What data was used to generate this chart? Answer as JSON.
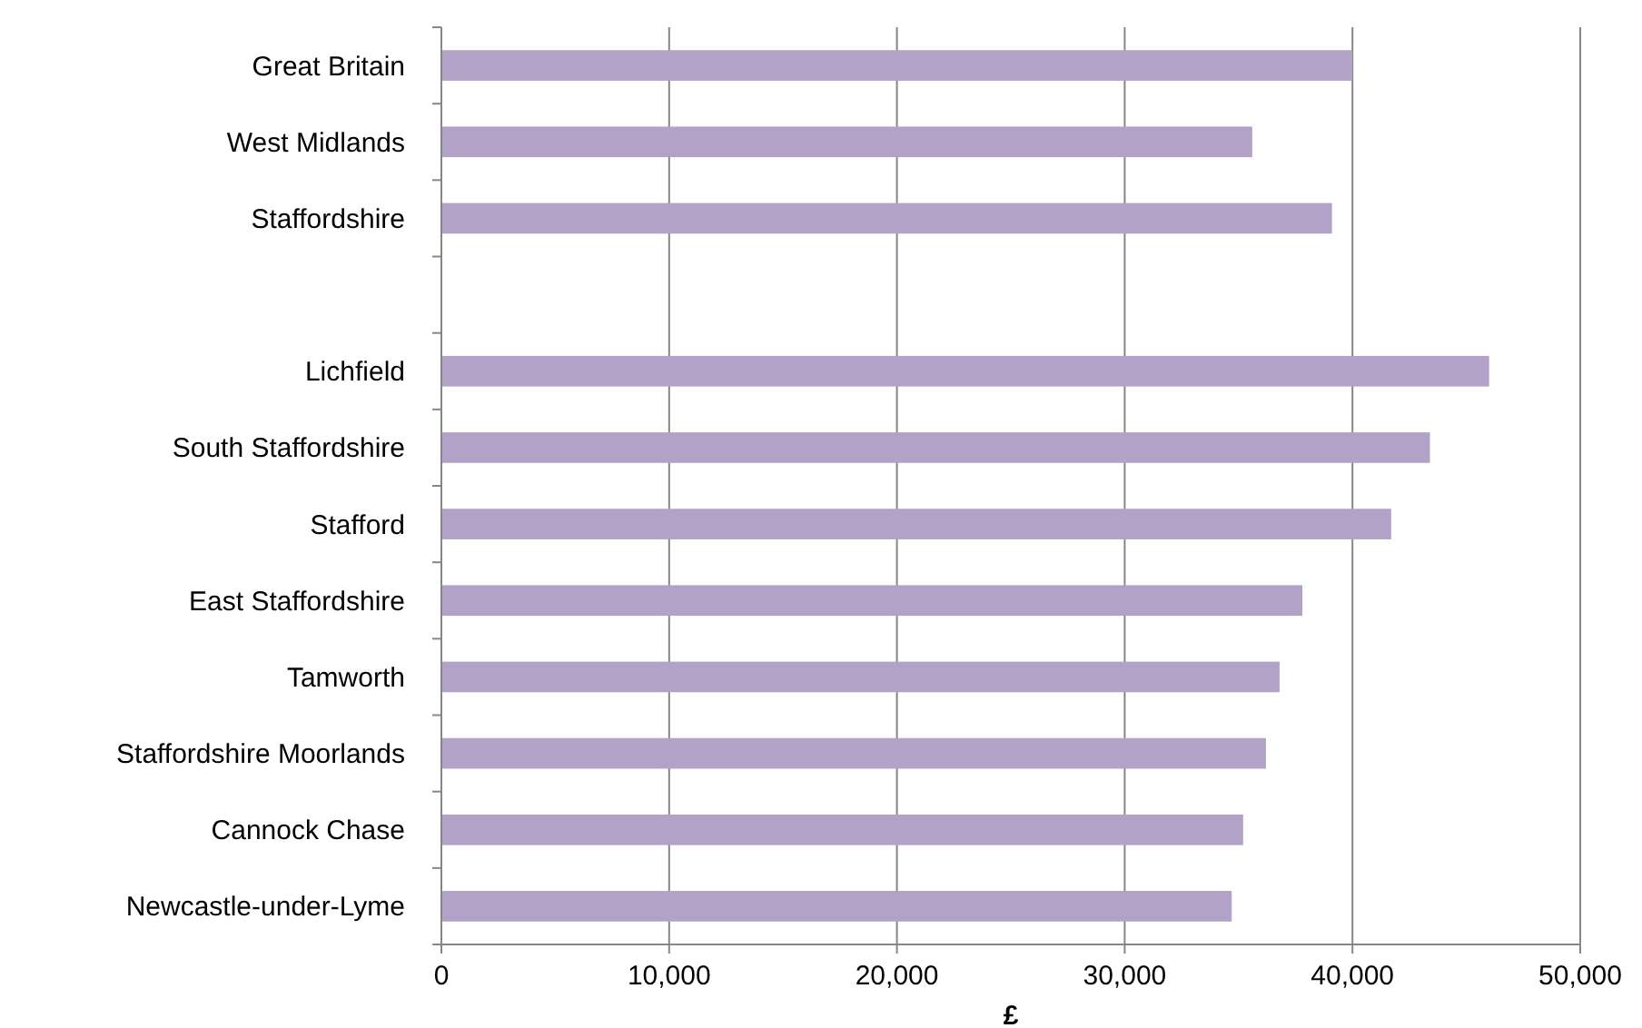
{
  "chart_data": {
    "type": "bar",
    "orientation": "horizontal",
    "xlabel": "£",
    "categories": [
      "Great Britain",
      "West Midlands",
      "Staffordshire",
      null,
      "Lichfield",
      "South Staffordshire",
      "Stafford",
      "East Staffordshire",
      "Tamworth",
      "Staffordshire Moorlands",
      "Cannock Chase",
      "Newcastle-under-Lyme"
    ],
    "values": [
      40000,
      35600,
      39100,
      null,
      46000,
      43400,
      41700,
      37800,
      36800,
      36200,
      35200,
      34700
    ],
    "color": "#b3a2c7",
    "xlim": [
      0,
      50000
    ],
    "xticks": [
      {
        "value": 0,
        "label": "0"
      },
      {
        "value": 10000,
        "label": "10,000"
      },
      {
        "value": 20000,
        "label": "20,000"
      },
      {
        "value": 30000,
        "label": "30,000"
      },
      {
        "value": 40000,
        "label": "40,000"
      },
      {
        "value": 50000,
        "label": "50,000"
      }
    ],
    "grid": "x"
  }
}
